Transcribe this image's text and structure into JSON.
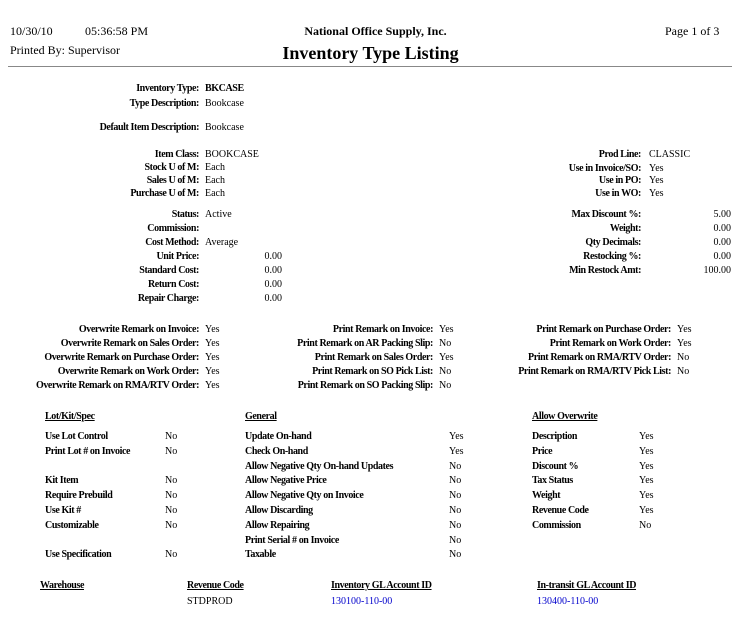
{
  "header": {
    "date": "10/30/10",
    "time": "05:36:58 PM",
    "printed_by": "Printed By: Supervisor",
    "company": "National Office Supply, Inc.",
    "title": "Inventory Type Listing",
    "page": "Page 1 of  3"
  },
  "left_fields": [
    {
      "label": "Inventory Type:",
      "value": "BKCASE",
      "bold": true
    },
    {
      "label": "Type Description:",
      "value": "Bookcase"
    },
    {
      "label": "Default Item Description:",
      "value": "Bookcase"
    },
    {
      "label": "Item Class:",
      "value": "BOOKCASE"
    },
    {
      "label": "Stock U of M:",
      "value": "Each"
    },
    {
      "label": "Sales U of M:",
      "value": "Each"
    },
    {
      "label": "Purchase U of M:",
      "value": "Each"
    },
    {
      "label": "Status:",
      "value": "Active"
    },
    {
      "label": "Commission:",
      "value": ""
    },
    {
      "label": "Cost Method:",
      "value": "Average"
    },
    {
      "label": "Unit Price:",
      "value": "0.00",
      "num": true
    },
    {
      "label": "Standard Cost:",
      "value": "0.00",
      "num": true
    },
    {
      "label": "Return Cost:",
      "value": "0.00",
      "num": true
    },
    {
      "label": "Repair Charge:",
      "value": "0.00",
      "num": true
    }
  ],
  "right_fields": [
    {
      "label": "Prod Line:",
      "value": "CLASSIC"
    },
    {
      "label": "Use in Invoice/SO:",
      "value": "Yes"
    },
    {
      "label": "Use in PO:",
      "value": "Yes"
    },
    {
      "label": "Use in WO:",
      "value": "Yes"
    },
    {
      "label": "Max Discount %:",
      "value": "5.00",
      "num": true
    },
    {
      "label": "Weight:",
      "value": "0.00",
      "num": true
    },
    {
      "label": "Qty Decimals:",
      "value": "0.00",
      "num": true
    },
    {
      "label": "Restocking %:",
      "value": "0.00",
      "num": true
    },
    {
      "label": "Min Restock Amt:",
      "value": "100.00",
      "num": true
    }
  ],
  "remarks": [
    [
      {
        "label": "Overwrite Remark on Invoice:",
        "value": "Yes"
      },
      {
        "label": "Overwrite Remark on Sales Order:",
        "value": "Yes"
      },
      {
        "label": "Overwrite Remark on Purchase Order:",
        "value": "Yes"
      },
      {
        "label": "Overwrite Remark on Work Order:",
        "value": "Yes"
      },
      {
        "label": "Overwrite Remark on RMA/RTV Order:",
        "value": "Yes"
      }
    ],
    [
      {
        "label": "Print Remark on Invoice:",
        "value": "Yes"
      },
      {
        "label": "Print Remark on AR Packing Slip:",
        "value": "No"
      },
      {
        "label": "Print Remark on Sales Order:",
        "value": "Yes"
      },
      {
        "label": "Print Remark on SO Pick List:",
        "value": "No"
      },
      {
        "label": "Print Remark on SO Packing Slip:",
        "value": "No"
      }
    ],
    [
      {
        "label": "Print Remark on Purchase Order:",
        "value": "Yes"
      },
      {
        "label": "Print Remark on Work Order:",
        "value": "Yes"
      },
      {
        "label": "Print Remark on RMA/RTV Order:",
        "value": "No"
      },
      {
        "label": "Print Remark on RMA/RTV Pick List:",
        "value": "No"
      }
    ]
  ],
  "sections": [
    {
      "title": "Lot/Kit/Spec",
      "rows": [
        {
          "label": "Use Lot Control",
          "value": "No",
          "row": 0
        },
        {
          "label": "Print Lot # on Invoice",
          "value": "No",
          "row": 1
        },
        {
          "label": "Kit Item",
          "value": "No",
          "row": 3
        },
        {
          "label": "Require Prebuild",
          "value": "No",
          "row": 4
        },
        {
          "label": "Use Kit #",
          "value": "No",
          "row": 5
        },
        {
          "label": "Customizable",
          "value": "No",
          "row": 6
        },
        {
          "label": "Use Specification",
          "value": "No",
          "row": 8
        }
      ]
    },
    {
      "title": "General",
      "rows": [
        {
          "label": "Update On-hand",
          "value": "Yes",
          "row": 0
        },
        {
          "label": "Check On-hand",
          "value": "Yes",
          "row": 1
        },
        {
          "label": "Allow Negative Qty On-hand Updates",
          "value": "No",
          "row": 2
        },
        {
          "label": "Allow Negative Price",
          "value": "No",
          "row": 3
        },
        {
          "label": "Allow Negative Qty on Invoice",
          "value": "No",
          "row": 4
        },
        {
          "label": "Allow Discarding",
          "value": "No",
          "row": 5
        },
        {
          "label": "Allow Repairing",
          "value": "No",
          "row": 6
        },
        {
          "label": "Print Serial # on Invoice",
          "value": "No",
          "row": 7
        },
        {
          "label": "Taxable",
          "value": "No",
          "row": 8
        }
      ]
    },
    {
      "title": "Allow Overwrite",
      "rows": [
        {
          "label": "Description",
          "value": "Yes",
          "row": 0
        },
        {
          "label": "Price",
          "value": "Yes",
          "row": 1
        },
        {
          "label": "Discount %",
          "value": "Yes",
          "row": 2
        },
        {
          "label": "Tax Status",
          "value": "Yes",
          "row": 3
        },
        {
          "label": "Weight",
          "value": "Yes",
          "row": 4
        },
        {
          "label": "Revenue Code",
          "value": "Yes",
          "row": 5
        },
        {
          "label": "Commission",
          "value": "No",
          "row": 6
        }
      ]
    }
  ],
  "warehouse_table": {
    "columns": [
      "Warehouse",
      "Revenue Code",
      "Inventory GL Account ID",
      "In-transit GL Account ID"
    ],
    "rows": [
      [
        "",
        "STDPROD",
        "130100-110-00",
        "130400-110-00"
      ]
    ],
    "link_color": "#0000cc"
  }
}
